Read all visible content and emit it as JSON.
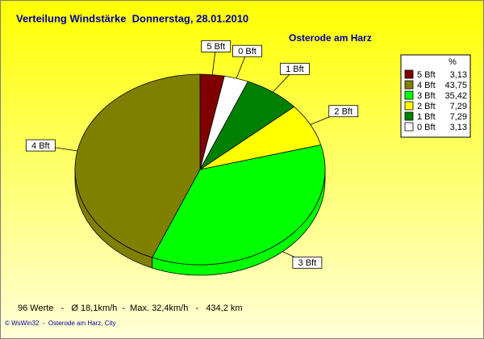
{
  "chart_data": {
    "type": "pie",
    "title": "Verteilung Windstärke  Donnerstag, 28.01.2010",
    "subtitle": "Osterode am Harz",
    "legend_title": "%",
    "categories": [
      "5 Bft",
      "4 Bft",
      "3 Bft",
      "2 Bft",
      "1 Bft",
      "0 Bft"
    ],
    "values": [
      3.13,
      43.75,
      35.42,
      7.29,
      7.29,
      3.13
    ],
    "value_labels": [
      "3,13",
      "43,75",
      "35,42",
      "7,29",
      "7,29",
      "3,13"
    ],
    "colors": [
      "#800000",
      "#808000",
      "#00ff00",
      "#ffff00",
      "#008000",
      "#ffffff"
    ],
    "legend_position": "upper right",
    "footer": "96 Werte   -   Ø 18,1km/h  -  Max. 32,4km/h   -   434,2 km",
    "credit": "© WsWin32  -  Osterode am Harz, City"
  }
}
